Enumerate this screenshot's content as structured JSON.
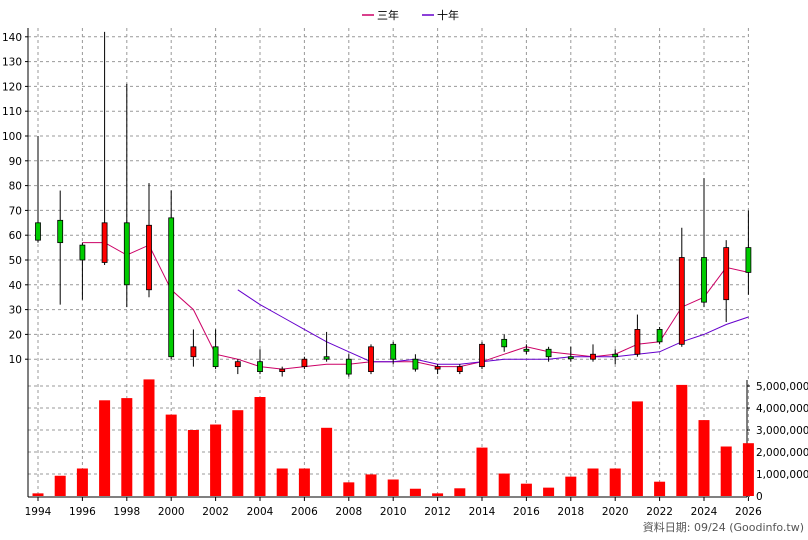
{
  "chart_data": [
    {
      "type": "candlestick",
      "legend": {
        "placement": "top-center",
        "items": [
          {
            "name": "三年",
            "color": "#cc0066"
          },
          {
            "name": "十年",
            "color": "#6600cc"
          }
        ]
      },
      "x_ticks": [
        "1994",
        "1996",
        "1998",
        "2000",
        "2002",
        "2004",
        "2006",
        "2008",
        "2010",
        "2012",
        "2014",
        "2016",
        "2018",
        "2020",
        "2022",
        "2024",
        "2026"
      ],
      "y_ticks": [
        10,
        20,
        30,
        40,
        50,
        60,
        70,
        80,
        90,
        100,
        110,
        120,
        130,
        140
      ],
      "ylim": [
        0,
        145
      ],
      "grid": true,
      "candles": [
        {
          "year": 1994,
          "open": 58,
          "close": 65,
          "high": 100,
          "low": 57
        },
        {
          "year": 1995,
          "open": 57,
          "close": 66,
          "high": 78,
          "low": 32
        },
        {
          "year": 1996,
          "open": 50,
          "close": 56,
          "high": 57,
          "low": 34
        },
        {
          "year": 1997,
          "open": 65,
          "close": 49,
          "high": 142,
          "low": 48
        },
        {
          "year": 1998,
          "open": 40,
          "close": 65,
          "high": 121,
          "low": 31
        },
        {
          "year": 1999,
          "open": 64,
          "close": 38,
          "high": 81,
          "low": 35
        },
        {
          "year": 2000,
          "open": 11,
          "close": 67,
          "high": 78,
          "low": 10
        },
        {
          "year": 2001,
          "open": 15,
          "close": 11,
          "high": 22,
          "low": 7
        },
        {
          "year": 2002,
          "open": 7,
          "close": 15,
          "high": 22,
          "low": 6
        },
        {
          "year": 2003,
          "open": 9,
          "close": 7,
          "high": 10,
          "low": 4
        },
        {
          "year": 2004,
          "open": 5,
          "close": 9,
          "high": 14,
          "low": 4
        },
        {
          "year": 2005,
          "open": 6,
          "close": 5,
          "high": 7,
          "low": 3
        },
        {
          "year": 2006,
          "open": 10,
          "close": 7,
          "high": 11,
          "low": 6
        },
        {
          "year": 2007,
          "open": 10,
          "close": 11,
          "high": 21,
          "low": 9
        },
        {
          "year": 2008,
          "open": 4,
          "close": 10,
          "high": 12,
          "low": 3
        },
        {
          "year": 2009,
          "open": 15,
          "close": 5,
          "high": 16,
          "low": 4
        },
        {
          "year": 2010,
          "open": 10,
          "close": 16,
          "high": 17,
          "low": 8
        },
        {
          "year": 2011,
          "open": 6,
          "close": 10,
          "high": 12,
          "low": 5
        },
        {
          "year": 2012,
          "open": 7,
          "close": 6,
          "high": 8,
          "low": 4
        },
        {
          "year": 2013,
          "open": 7,
          "close": 5,
          "high": 8,
          "low": 4
        },
        {
          "year": 2014,
          "open": 16,
          "close": 7,
          "high": 17,
          "low": 6
        },
        {
          "year": 2015,
          "open": 15,
          "close": 18,
          "high": 20,
          "low": 13
        },
        {
          "year": 2016,
          "open": 14,
          "close": 14,
          "high": 16,
          "low": 12
        },
        {
          "year": 2017,
          "open": 11,
          "close": 14,
          "high": 15,
          "low": 9
        },
        {
          "year": 2018,
          "open": 11,
          "close": 11,
          "high": 15,
          "low": 9
        },
        {
          "year": 2019,
          "open": 12,
          "close": 10,
          "high": 16,
          "low": 9
        },
        {
          "year": 2020,
          "open": 11,
          "close": 12,
          "high": 14,
          "low": 8
        },
        {
          "year": 2021,
          "open": 22,
          "close": 12,
          "high": 28,
          "low": 11
        },
        {
          "year": 2022,
          "open": 17,
          "close": 22,
          "high": 23,
          "low": 16
        },
        {
          "year": 2023,
          "open": 51,
          "close": 16,
          "high": 63,
          "low": 15
        },
        {
          "year": 2024,
          "open": 33,
          "close": 51,
          "high": 83,
          "low": 31
        },
        {
          "year": 2025,
          "open": 55,
          "close": 34,
          "high": 58,
          "low": 25
        },
        {
          "year": 2026,
          "open": 45,
          "close": 55,
          "high": 70,
          "low": 36
        }
      ],
      "series": [
        {
          "name": "三年",
          "color": "#cc0066",
          "points": [
            [
              1996,
              57
            ],
            [
              1997,
              57
            ],
            [
              1998,
              52
            ],
            [
              1999,
              56
            ],
            [
              2000,
              38
            ],
            [
              2001,
              30
            ],
            [
              2002,
              12
            ],
            [
              2003,
              10
            ],
            [
              2004,
              7
            ],
            [
              2005,
              6
            ],
            [
              2006,
              7
            ],
            [
              2007,
              8
            ],
            [
              2008,
              8
            ],
            [
              2009,
              9
            ],
            [
              2010,
              9
            ],
            [
              2011,
              9
            ],
            [
              2012,
              7
            ],
            [
              2013,
              7
            ],
            [
              2014,
              9
            ],
            [
              2015,
              12
            ],
            [
              2016,
              15
            ],
            [
              2017,
              13
            ],
            [
              2018,
              12
            ],
            [
              2019,
              11
            ],
            [
              2020,
              12
            ],
            [
              2021,
              16
            ],
            [
              2022,
              17
            ],
            [
              2023,
              31
            ],
            [
              2024,
              35
            ],
            [
              2025,
              47
            ],
            [
              2026,
              45
            ]
          ]
        },
        {
          "name": "十年",
          "color": "#6600cc",
          "points": [
            [
              2003,
              38
            ],
            [
              2004,
              32
            ],
            [
              2005,
              27
            ],
            [
              2006,
              22
            ],
            [
              2007,
              17
            ],
            [
              2008,
              13
            ],
            [
              2009,
              9
            ],
            [
              2010,
              9
            ],
            [
              2011,
              10
            ],
            [
              2012,
              8
            ],
            [
              2013,
              8
            ],
            [
              2014,
              9
            ],
            [
              2015,
              10
            ],
            [
              2016,
              10
            ],
            [
              2017,
              10
            ],
            [
              2018,
              11
            ],
            [
              2019,
              11
            ],
            [
              2020,
              11
            ],
            [
              2021,
              12
            ],
            [
              2022,
              13
            ],
            [
              2023,
              17
            ],
            [
              2024,
              20
            ],
            [
              2025,
              24
            ],
            [
              2026,
              27
            ]
          ]
        }
      ]
    },
    {
      "type": "bar",
      "series_color": "#ff0000",
      "y_ticks": [
        0,
        1000000,
        2000000,
        3000000,
        4000000,
        5000000
      ],
      "y_tick_labels": [
        "0",
        "1,000,000",
        "2,000,000",
        "3,000,000",
        "4,000,000",
        "5,000,000"
      ],
      "ylim": [
        0,
        5200000
      ],
      "grid": true,
      "values": [
        {
          "year": 1994,
          "value": 120000
        },
        {
          "year": 1995,
          "value": 920000
        },
        {
          "year": 1996,
          "value": 1250000
        },
        {
          "year": 1997,
          "value": 4350000
        },
        {
          "year": 1998,
          "value": 4450000
        },
        {
          "year": 1999,
          "value": 5300000
        },
        {
          "year": 2000,
          "value": 3700000
        },
        {
          "year": 2001,
          "value": 3000000
        },
        {
          "year": 2002,
          "value": 3250000
        },
        {
          "year": 2003,
          "value": 3900000
        },
        {
          "year": 2004,
          "value": 4500000
        },
        {
          "year": 2005,
          "value": 1250000
        },
        {
          "year": 2006,
          "value": 1250000
        },
        {
          "year": 2007,
          "value": 3100000
        },
        {
          "year": 2008,
          "value": 620000
        },
        {
          "year": 2009,
          "value": 980000
        },
        {
          "year": 2010,
          "value": 750000
        },
        {
          "year": 2011,
          "value": 330000
        },
        {
          "year": 2012,
          "value": 120000
        },
        {
          "year": 2013,
          "value": 350000
        },
        {
          "year": 2014,
          "value": 2200000
        },
        {
          "year": 2015,
          "value": 1020000
        },
        {
          "year": 2016,
          "value": 560000
        },
        {
          "year": 2017,
          "value": 380000
        },
        {
          "year": 2018,
          "value": 880000
        },
        {
          "year": 2019,
          "value": 1250000
        },
        {
          "year": 2020,
          "value": 1250000
        },
        {
          "year": 2021,
          "value": 4300000
        },
        {
          "year": 2022,
          "value": 650000
        },
        {
          "year": 2023,
          "value": 5050000
        },
        {
          "year": 2024,
          "value": 3450000
        },
        {
          "year": 2025,
          "value": 2250000
        },
        {
          "year": 2026,
          "value": 2400000
        }
      ]
    }
  ],
  "footer": "資料日期: 09/24  (Goodinfo.tw)",
  "colors": {
    "up": "#00cc00",
    "down": "#ff0000",
    "grid": "#999999"
  }
}
